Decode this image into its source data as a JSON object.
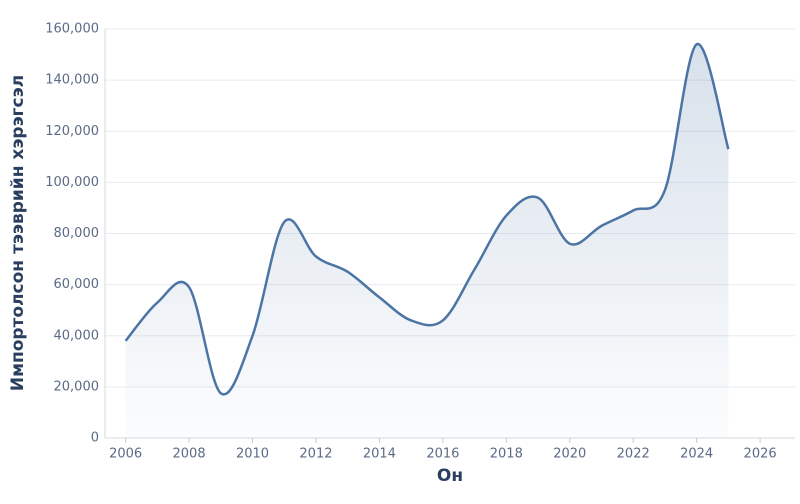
{
  "chart_data": {
    "type": "area",
    "x_label": "Он",
    "y_label": "Импортолсон тээврийн хэрэгсэл",
    "x": [
      2006,
      2007,
      2008,
      2009,
      2010,
      2011,
      2012,
      2013,
      2014,
      2015,
      2016,
      2017,
      2018,
      2019,
      2020,
      2021,
      2022,
      2023,
      2024,
      2025
    ],
    "values": [
      38000,
      53000,
      59000,
      17500,
      40000,
      84500,
      71000,
      65000,
      55000,
      46000,
      46000,
      66000,
      87000,
      94000,
      76000,
      83000,
      89000,
      97000,
      154000,
      113000
    ],
    "color": "#4c74a4",
    "xlim": [
      2005.35,
      2027.1
    ],
    "xticks": [
      2006,
      2008,
      2010,
      2012,
      2014,
      2016,
      2018,
      2020,
      2022,
      2024,
      2026
    ],
    "ylim": [
      0,
      160000
    ],
    "yticks": [
      0,
      {
        "value": 20000,
        "label": "20,000"
      },
      {
        "value": 40000,
        "label": "40,000"
      },
      {
        "value": 60000,
        "label": "60,000"
      },
      {
        "value": 80000,
        "label": "80,000"
      },
      {
        "value": 100000,
        "label": "100,000"
      },
      {
        "value": 120000,
        "label": "120,000"
      },
      {
        "value": 140000,
        "label": "140,000"
      },
      {
        "value": 160000,
        "label": "160,000"
      }
    ],
    "grid": true
  }
}
